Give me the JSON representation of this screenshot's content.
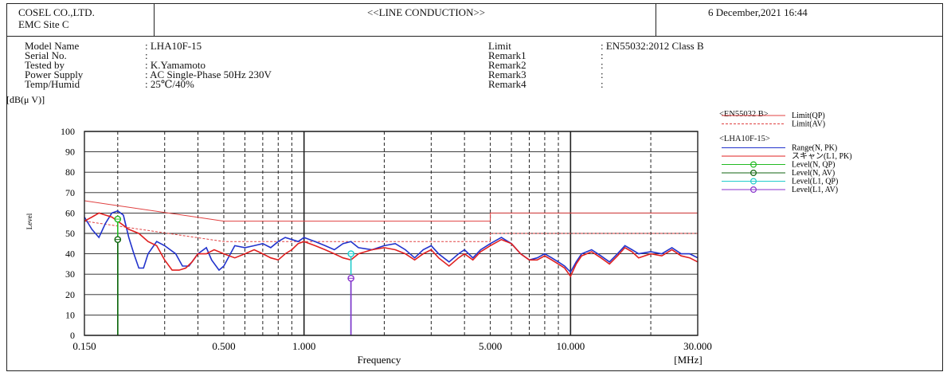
{
  "header": {
    "company": "COSEL CO.,LTD.",
    "site": "EMC Site C",
    "title": "<<LINE CONDUCTION>>",
    "datetime": "6 December,2021 16:44"
  },
  "info_left": [
    {
      "label": "Model Name",
      "value": ": LHA10F-15"
    },
    {
      "label": "Serial No.",
      "value": ":"
    },
    {
      "label": "Tested by",
      "value": ": K.Yamamoto"
    },
    {
      "label": "Power Supply",
      "value": ": AC Single-Phase 50Hz 230V"
    },
    {
      "label": "Temp/Humid",
      "value": ": 25℃/40%"
    }
  ],
  "info_right": [
    {
      "label": "Limit",
      "value": ": EN55032:2012 Class B"
    },
    {
      "label": "Remark1",
      "value": ":"
    },
    {
      "label": "Remark2",
      "value": ":"
    },
    {
      "label": "Remark3",
      "value": ":"
    },
    {
      "label": "Remark4",
      "value": ":"
    }
  ],
  "legend": {
    "group1_title": "<EN55032 B>",
    "group2_title": "<LHA10F-15>",
    "items": [
      {
        "name": "Limit(QP)",
        "color": "#e04040",
        "style": "solid",
        "marker": "none"
      },
      {
        "name": "Limit(AV)",
        "color": "#e04040",
        "style": "dashed",
        "marker": "none"
      },
      {
        "name": "Range(N, PK)",
        "color": "#2233cc",
        "style": "solid",
        "marker": "none"
      },
      {
        "name": "スキャン(L1, PK)",
        "color": "#e02020",
        "style": "solid",
        "marker": "none"
      },
      {
        "name": "Level(N, QP)",
        "color": "#22bb22",
        "style": "solid",
        "marker": "circle"
      },
      {
        "name": "Level(N, AV)",
        "color": "#116611",
        "style": "solid",
        "marker": "circle"
      },
      {
        "name": "Level(L1, QP)",
        "color": "#22cccc",
        "style": "solid",
        "marker": "circle"
      },
      {
        "name": "Level(L1, AV)",
        "color": "#8833cc",
        "style": "solid",
        "marker": "circle"
      }
    ]
  },
  "chart_data": {
    "type": "line",
    "title": "<<LINE CONDUCTION>>",
    "xlabel": "Frequency",
    "x_unit": "[MHz]",
    "ylabel": "[dB(μ V)]",
    "ylabel_side": "Level",
    "x_scale": "log",
    "xlim": [
      0.15,
      30
    ],
    "ylim": [
      0,
      100
    ],
    "y_ticks": [
      0,
      10,
      20,
      30,
      40,
      50,
      60,
      70,
      80,
      90,
      100
    ],
    "x_tick_labels": [
      {
        "x": 0.15,
        "label": "0.150"
      },
      {
        "x": 0.5,
        "label": "0.500"
      },
      {
        "x": 1,
        "label": "1.000"
      },
      {
        "x": 5,
        "label": "5.000"
      },
      {
        "x": 10,
        "label": "10.000"
      },
      {
        "x": 30,
        "label": "30.000"
      }
    ],
    "grid": true,
    "legend_position": "right",
    "series": [
      {
        "name": "Limit(QP)",
        "color": "#e04040",
        "points": [
          [
            0.15,
            66
          ],
          [
            0.5,
            56
          ],
          [
            5,
            56
          ],
          [
            5,
            60
          ],
          [
            30,
            60
          ]
        ]
      },
      {
        "name": "Limit(AV)",
        "color": "#e04040",
        "dashed": true,
        "points": [
          [
            0.15,
            56
          ],
          [
            0.5,
            46
          ],
          [
            5,
            46
          ],
          [
            5,
            50
          ],
          [
            30,
            50
          ]
        ]
      },
      {
        "name": "Range(N, PK)",
        "color": "#2233cc",
        "points": [
          [
            0.15,
            58
          ],
          [
            0.16,
            52
          ],
          [
            0.17,
            48
          ],
          [
            0.18,
            55
          ],
          [
            0.19,
            60
          ],
          [
            0.2,
            61
          ],
          [
            0.21,
            59
          ],
          [
            0.22,
            48
          ],
          [
            0.23,
            40
          ],
          [
            0.24,
            33
          ],
          [
            0.25,
            33
          ],
          [
            0.26,
            40
          ],
          [
            0.28,
            46
          ],
          [
            0.3,
            44
          ],
          [
            0.33,
            40
          ],
          [
            0.35,
            34
          ],
          [
            0.37,
            34
          ],
          [
            0.4,
            40
          ],
          [
            0.43,
            43
          ],
          [
            0.45,
            37
          ],
          [
            0.48,
            32
          ],
          [
            0.5,
            34
          ],
          [
            0.55,
            44
          ],
          [
            0.6,
            43
          ],
          [
            0.65,
            44
          ],
          [
            0.7,
            45
          ],
          [
            0.75,
            43
          ],
          [
            0.8,
            46
          ],
          [
            0.85,
            48
          ],
          [
            0.9,
            47
          ],
          [
            0.95,
            46
          ],
          [
            1.0,
            48
          ],
          [
            1.1,
            46
          ],
          [
            1.2,
            44
          ],
          [
            1.3,
            42
          ],
          [
            1.4,
            45
          ],
          [
            1.5,
            46
          ],
          [
            1.6,
            43
          ],
          [
            1.8,
            42
          ],
          [
            2.0,
            44
          ],
          [
            2.2,
            45
          ],
          [
            2.4,
            42
          ],
          [
            2.6,
            38
          ],
          [
            2.8,
            42
          ],
          [
            3.0,
            44
          ],
          [
            3.2,
            40
          ],
          [
            3.5,
            36
          ],
          [
            3.8,
            40
          ],
          [
            4.0,
            42
          ],
          [
            4.3,
            38
          ],
          [
            4.6,
            42
          ],
          [
            5.0,
            45
          ],
          [
            5.5,
            48
          ],
          [
            6.0,
            45
          ],
          [
            6.5,
            40
          ],
          [
            7.0,
            37
          ],
          [
            7.5,
            38
          ],
          [
            8.0,
            40
          ],
          [
            8.5,
            38
          ],
          [
            9.0,
            36
          ],
          [
            9.5,
            34
          ],
          [
            10.0,
            31
          ],
          [
            10.5,
            36
          ],
          [
            11,
            40
          ],
          [
            12,
            42
          ],
          [
            13,
            39
          ],
          [
            14,
            36
          ],
          [
            15,
            40
          ],
          [
            16,
            44
          ],
          [
            17,
            42
          ],
          [
            18,
            40
          ],
          [
            20,
            41
          ],
          [
            22,
            40
          ],
          [
            24,
            43
          ],
          [
            26,
            40
          ],
          [
            28,
            40
          ],
          [
            30,
            38
          ]
        ]
      },
      {
        "name": "スキャン(L1, PK)",
        "color": "#e02020",
        "points": [
          [
            0.15,
            56
          ],
          [
            0.16,
            58
          ],
          [
            0.17,
            60
          ],
          [
            0.18,
            59
          ],
          [
            0.19,
            58
          ],
          [
            0.2,
            56
          ],
          [
            0.21,
            54
          ],
          [
            0.22,
            52
          ],
          [
            0.24,
            50
          ],
          [
            0.26,
            46
          ],
          [
            0.28,
            44
          ],
          [
            0.3,
            37
          ],
          [
            0.32,
            32
          ],
          [
            0.34,
            32
          ],
          [
            0.36,
            33
          ],
          [
            0.38,
            36
          ],
          [
            0.4,
            40
          ],
          [
            0.43,
            40
          ],
          [
            0.46,
            42
          ],
          [
            0.5,
            40
          ],
          [
            0.55,
            38
          ],
          [
            0.6,
            40
          ],
          [
            0.65,
            42
          ],
          [
            0.7,
            40
          ],
          [
            0.75,
            38
          ],
          [
            0.8,
            37
          ],
          [
            0.85,
            40
          ],
          [
            0.9,
            42
          ],
          [
            0.95,
            45
          ],
          [
            1.0,
            46
          ],
          [
            1.1,
            44
          ],
          [
            1.2,
            42
          ],
          [
            1.3,
            40
          ],
          [
            1.4,
            38
          ],
          [
            1.5,
            37
          ],
          [
            1.6,
            40
          ],
          [
            1.8,
            42
          ],
          [
            2.0,
            43
          ],
          [
            2.2,
            42
          ],
          [
            2.4,
            40
          ],
          [
            2.6,
            37
          ],
          [
            2.8,
            40
          ],
          [
            3.0,
            42
          ],
          [
            3.2,
            38
          ],
          [
            3.5,
            34
          ],
          [
            3.8,
            38
          ],
          [
            4.0,
            40
          ],
          [
            4.3,
            37
          ],
          [
            4.6,
            41
          ],
          [
            5.0,
            44
          ],
          [
            5.5,
            47
          ],
          [
            6.0,
            45
          ],
          [
            6.5,
            40
          ],
          [
            7.0,
            37
          ],
          [
            7.5,
            37
          ],
          [
            8.0,
            39
          ],
          [
            8.5,
            37
          ],
          [
            9.0,
            35
          ],
          [
            9.5,
            33
          ],
          [
            10.0,
            29
          ],
          [
            10.5,
            35
          ],
          [
            11,
            39
          ],
          [
            12,
            41
          ],
          [
            13,
            38
          ],
          [
            14,
            35
          ],
          [
            15,
            39
          ],
          [
            16,
            43
          ],
          [
            17,
            41
          ],
          [
            18,
            38
          ],
          [
            20,
            40
          ],
          [
            22,
            39
          ],
          [
            24,
            42
          ],
          [
            26,
            39
          ],
          [
            28,
            38
          ],
          [
            30,
            36
          ]
        ]
      }
    ],
    "markers": [
      {
        "series": "Level(N, QP)",
        "x": 0.2,
        "y": 57,
        "color": "#22bb22"
      },
      {
        "series": "Level(N, AV)",
        "x": 0.2,
        "y": 47,
        "color": "#116611"
      },
      {
        "series": "Level(L1, QP)",
        "x": 1.5,
        "y": 40,
        "color": "#22cccc"
      },
      {
        "series": "Level(L1, AV)",
        "x": 1.5,
        "y": 28,
        "color": "#8833cc"
      }
    ]
  }
}
